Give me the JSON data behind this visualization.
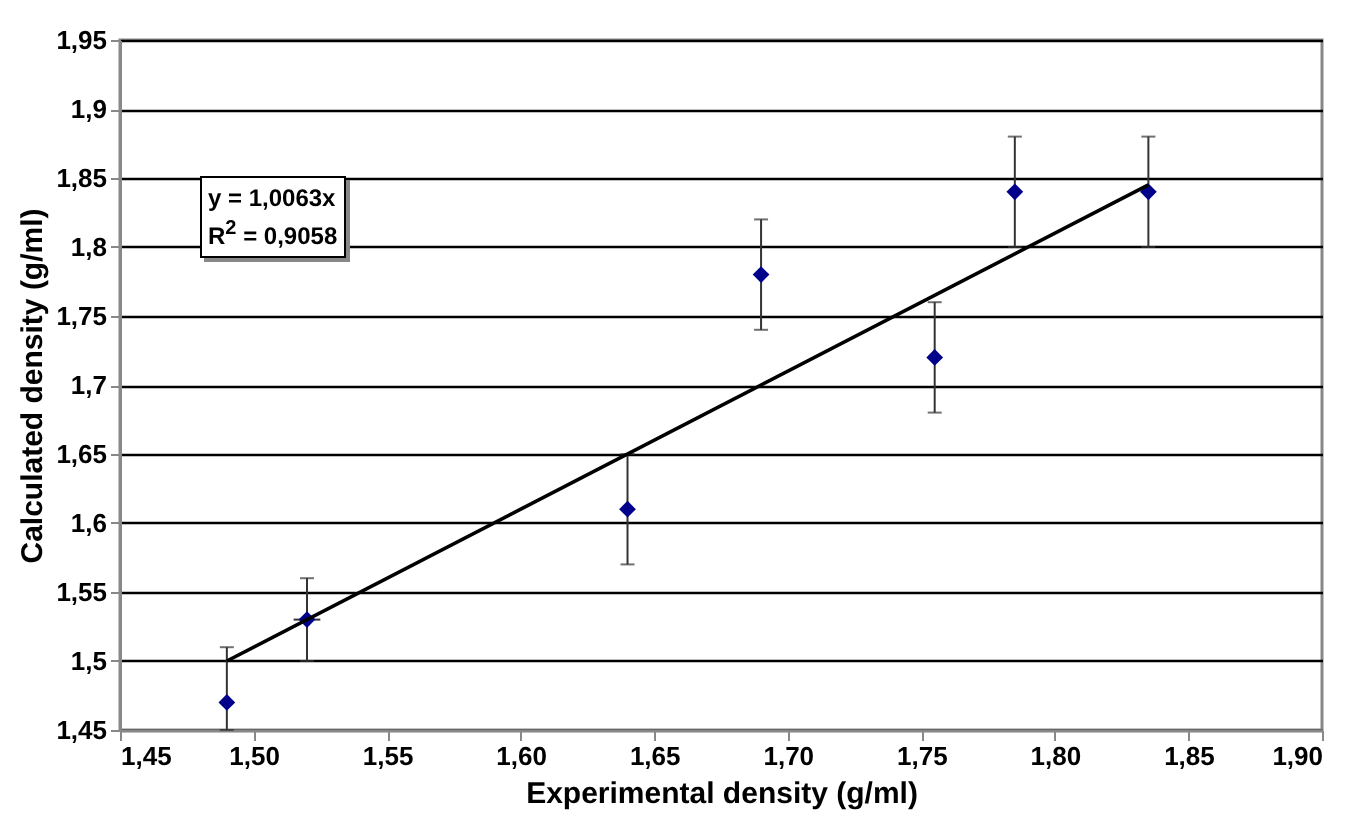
{
  "chart_data": {
    "type": "scatter",
    "xlabel": "Experimental density (g/ml)",
    "ylabel": "Calculated density (g/ml)",
    "annotations": [
      "y = 1,0063x",
      "R$^{2}$ = 0,9058"
    ],
    "xlim": [
      1.45,
      1.9
    ],
    "ylim": [
      1.45,
      1.95
    ],
    "xticks": [
      {
        "value": 1.45,
        "label": "1,45"
      },
      {
        "value": 1.5,
        "label": "1,50"
      },
      {
        "value": 1.55,
        "label": "1,55"
      },
      {
        "value": 1.6,
        "label": "1,60"
      },
      {
        "value": 1.65,
        "label": "1,65"
      },
      {
        "value": 1.7,
        "label": "1,70"
      },
      {
        "value": 1.75,
        "label": "1,75"
      },
      {
        "value": 1.8,
        "label": "1,80"
      },
      {
        "value": 1.85,
        "label": "1,85"
      },
      {
        "value": 1.9,
        "label": "1,90"
      }
    ],
    "yticks": [
      {
        "value": 1.45,
        "label": "1,45"
      },
      {
        "value": 1.5,
        "label": "1,5"
      },
      {
        "value": 1.55,
        "label": "1,55"
      },
      {
        "value": 1.6,
        "label": "1,6"
      },
      {
        "value": 1.65,
        "label": "1,65"
      },
      {
        "value": 1.7,
        "label": "1,7"
      },
      {
        "value": 1.75,
        "label": "1,75"
      },
      {
        "value": 1.8,
        "label": "1,8"
      },
      {
        "value": 1.85,
        "label": "1,85"
      },
      {
        "value": 1.9,
        "label": "1,9"
      },
      {
        "value": 1.95,
        "label": "1,95"
      }
    ],
    "grid": "y",
    "marker": "diamond",
    "series": [
      {
        "color": "#00008b",
        "x": [
          1.49,
          1.52,
          1.64,
          1.69,
          1.755,
          1.785,
          1.835
        ],
        "values": [
          1.47,
          1.53,
          1.61,
          1.78,
          1.72,
          1.84,
          1.84
        ],
        "errors": [
          [
            1.45,
            1.51
          ],
          0.03,
          0.04,
          0.04,
          0.04,
          0.04,
          0.04
        ],
        "xerrors": [
          null,
          0.005,
          null,
          null,
          null,
          null,
          null
        ]
      },
      {
        "type": "line",
        "marker": "none",
        "color": "#000000",
        "x": [
          1.49,
          1.835
        ],
        "values": [
          1.5,
          1.845
        ]
      }
    ]
  }
}
